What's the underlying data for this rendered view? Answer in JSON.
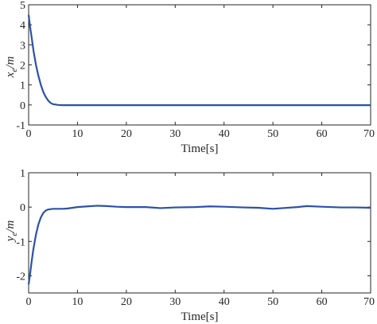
{
  "chart_data": [
    {
      "type": "line",
      "title": "",
      "xlabel": "Time[s]",
      "ylabel_var": "x",
      "ylabel_sub": "e",
      "ylabel_unit": "/m",
      "xlim": [
        0,
        70
      ],
      "ylim": [
        -1,
        5
      ],
      "xticks": [
        0,
        10,
        20,
        30,
        40,
        50,
        60,
        70
      ],
      "yticks": [
        -1,
        0,
        1,
        2,
        3,
        4,
        5
      ],
      "line_color": "#2a52a8",
      "series": [
        {
          "x": [
            0,
            0.3,
            0.6,
            1,
            1.5,
            2,
            2.5,
            3,
            3.5,
            4,
            4.5,
            5,
            6,
            7,
            8,
            10,
            15,
            20,
            30,
            40,
            50,
            60,
            70
          ],
          "y": [
            4.5,
            3.9,
            3.4,
            2.7,
            2.0,
            1.45,
            1.0,
            0.65,
            0.4,
            0.22,
            0.1,
            0.04,
            0.0,
            -0.01,
            -0.01,
            -0.01,
            -0.01,
            -0.01,
            -0.01,
            -0.01,
            -0.01,
            -0.01,
            -0.01
          ]
        }
      ]
    },
    {
      "type": "line",
      "title": "",
      "xlabel": "Time[s]",
      "ylabel_var": "y",
      "ylabel_sub": "e",
      "ylabel_unit": "/m",
      "xlim": [
        0,
        70
      ],
      "ylim": [
        -2.5,
        1
      ],
      "xticks": [
        0,
        10,
        20,
        30,
        40,
        50,
        60,
        70
      ],
      "yticks": [
        -2,
        -1,
        0,
        1
      ],
      "line_color": "#2a52a8",
      "series": [
        {
          "x": [
            0,
            0.3,
            0.6,
            1,
            1.5,
            2,
            2.5,
            3,
            3.5,
            4,
            5,
            6,
            7,
            8,
            10,
            12,
            14,
            16,
            18,
            20,
            24,
            27,
            30,
            34,
            37,
            40,
            44,
            47,
            50,
            52,
            55,
            57,
            60,
            64,
            67,
            70
          ],
          "y": [
            -2.25,
            -1.95,
            -1.6,
            -1.2,
            -0.8,
            -0.5,
            -0.3,
            -0.17,
            -0.1,
            -0.07,
            -0.05,
            -0.05,
            -0.05,
            -0.04,
            0.0,
            0.02,
            0.04,
            0.03,
            0.01,
            0.0,
            0.0,
            -0.03,
            -0.01,
            0.0,
            0.02,
            0.01,
            -0.01,
            -0.02,
            -0.05,
            -0.03,
            0.0,
            0.03,
            0.01,
            -0.01,
            -0.01,
            -0.02
          ]
        }
      ]
    }
  ]
}
